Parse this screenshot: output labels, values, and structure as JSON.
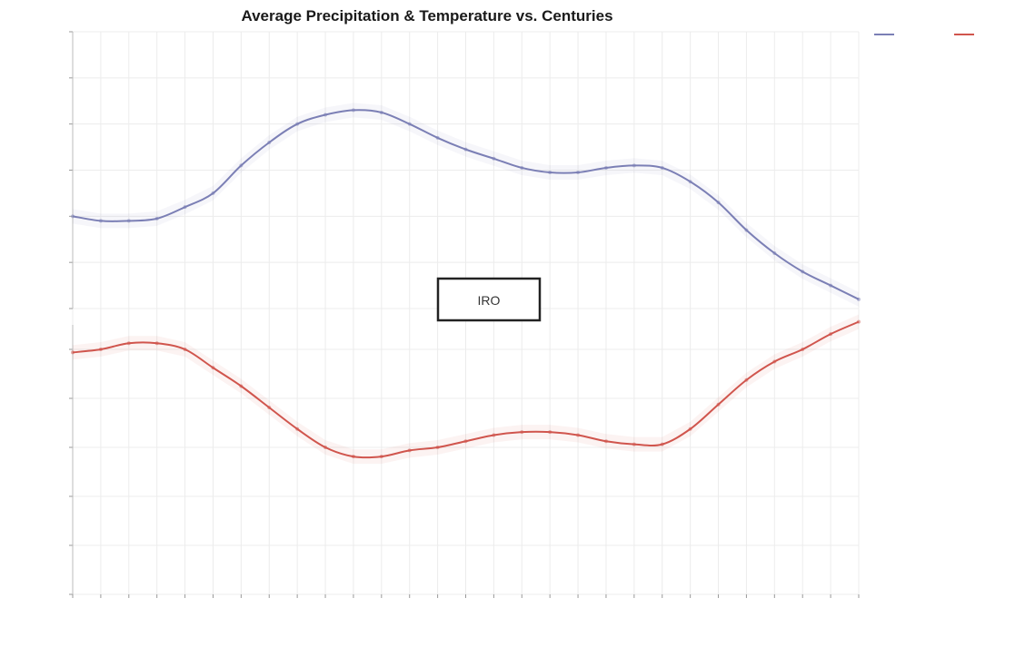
{
  "chart_data": {
    "type": "line",
    "title": "Average Precipitation & Temperature vs. Centuries",
    "xlabel": "",
    "categories": [
      "",
      "",
      "",
      "",
      "",
      "",
      "",
      "",
      "",
      "",
      "",
      "",
      "",
      "",
      "",
      "",
      "",
      "",
      "",
      "",
      "",
      "",
      "",
      "",
      "",
      "",
      "",
      "",
      ""
    ],
    "panels": [
      {
        "ylabel": "",
        "ylim": [
          4.0,
          10.0
        ],
        "yticks": [
          4.0,
          5.0,
          6.0,
          7.0,
          8.0,
          9.0,
          10.0
        ],
        "yticklabels": [
          "",
          "",
          "",
          "",
          "",
          "",
          ""
        ],
        "series": [
          {
            "color": "#7b7fb5",
            "values": [
              6.0,
              5.9,
              5.9,
              5.95,
              6.2,
              6.5,
              7.1,
              7.6,
              8.0,
              8.2,
              8.3,
              8.25,
              8.0,
              7.7,
              7.45,
              7.25,
              7.05,
              6.95,
              6.95,
              7.05,
              7.1,
              7.05,
              6.75,
              6.3,
              5.7,
              5.2,
              4.8,
              4.5,
              4.2
            ]
          }
        ]
      },
      {
        "ylabel": "",
        "ylim": [
          11.6,
          16.0
        ],
        "yticks": [
          11.6,
          12.4,
          13.2,
          14.0,
          14.8,
          15.6
        ],
        "yticklabels": [
          "",
          "",
          "",
          "",
          "",
          ""
        ],
        "series": [
          {
            "color": "#d0554d",
            "values": [
              15.55,
              15.6,
              15.7,
              15.7,
              15.6,
              15.3,
              15.0,
              14.65,
              14.3,
              14.0,
              13.85,
              13.85,
              13.95,
              14.0,
              14.1,
              14.2,
              14.25,
              14.25,
              14.2,
              14.1,
              14.05,
              14.05,
              14.3,
              14.7,
              15.1,
              15.4,
              15.6,
              15.85,
              16.05
            ]
          }
        ]
      }
    ],
    "legend": {
      "title": "",
      "location": "top-right",
      "entries": [
        "",
        ""
      ]
    },
    "annotation": "IRO",
    "grid": true
  },
  "colors": {
    "precipitation": "#7b7fb5",
    "temperature": "#d0554d",
    "grid": "#e6e6e6",
    "axis": "#888888",
    "annotation_border": "#222222"
  }
}
